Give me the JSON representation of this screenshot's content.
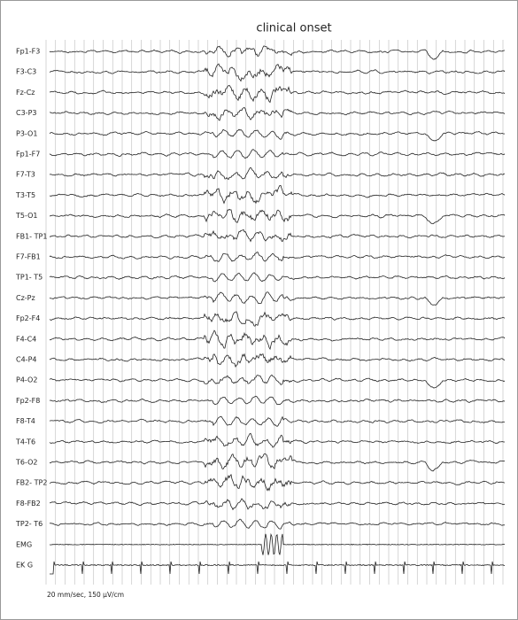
{
  "annotation": "clinical onset",
  "channels": [
    "Fp1-F3",
    "F3-C3",
    "Fz-Cz",
    "C3-P3",
    "P3-O1",
    "Fp1-F7",
    "F7-T3",
    "T3-T5",
    "T5-O1",
    "FB1- TP1",
    "F7-FB1",
    "TP1- T5",
    "Cz-Pz",
    "Fp2-F4",
    "F4-C4",
    "C4-P4",
    "P4-O2",
    "Fp2-F8",
    "F8-T4",
    "T4-T6",
    "T6-O2",
    "FB2- TP2",
    "F8-FB2",
    "TP2- T6",
    "EMG",
    "EK G"
  ],
  "scale": "20 mm/sec, 150 μV/cm"
}
